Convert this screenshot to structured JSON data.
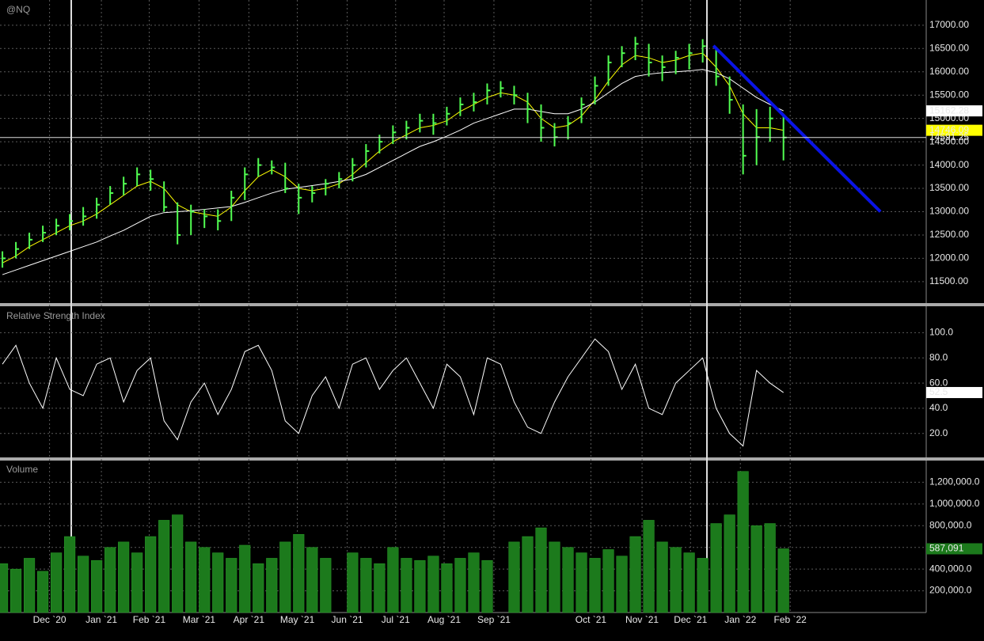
{
  "chart_data": [
    {
      "type": "ohlc",
      "title": "@NQ",
      "color": "#52ff52",
      "high": [
        12150,
        12350,
        12550,
        12700,
        12850,
        12950,
        13100,
        13300,
        13550,
        13750,
        13950,
        13900,
        13650,
        13200,
        13150,
        13050,
        13050,
        13450,
        13950,
        14150,
        14100,
        14050,
        13600,
        13550,
        13700,
        13850,
        14150,
        14450,
        14650,
        14850,
        14950,
        15100,
        15100,
        15250,
        15450,
        15550,
        15750,
        15800,
        15700,
        15550,
        15300,
        14900,
        15050,
        15450,
        15900,
        16350,
        16550,
        16750,
        16600,
        16350,
        16450,
        16600,
        16700,
        16500,
        15900,
        15300,
        15200,
        15250,
        15100
      ],
      "low": [
        11800,
        12000,
        12200,
        12350,
        12500,
        12600,
        12700,
        12850,
        13150,
        13350,
        13550,
        13450,
        13000,
        12300,
        12500,
        12650,
        12600,
        12800,
        13250,
        13750,
        13800,
        13400,
        12950,
        13200,
        13350,
        13500,
        13650,
        13950,
        14250,
        14450,
        14550,
        14700,
        14650,
        14850,
        15050,
        15150,
        15300,
        15450,
        15300,
        14900,
        14500,
        14400,
        14550,
        14900,
        15300,
        15700,
        16100,
        16250,
        15900,
        15800,
        15950,
        16050,
        16200,
        15700,
        15100,
        13800,
        14000,
        14500,
        14100
      ],
      "close": [
        12000,
        12200,
        12400,
        12550,
        12700,
        12800,
        12900,
        13150,
        13400,
        13600,
        13800,
        13700,
        13100,
        12500,
        13000,
        12900,
        12800,
        13300,
        13800,
        14000,
        13950,
        13500,
        13300,
        13400,
        13600,
        13700,
        14000,
        14300,
        14500,
        14700,
        14800,
        14950,
        14900,
        15100,
        15300,
        15350,
        15600,
        15650,
        15500,
        15200,
        14800,
        14600,
        14900,
        15300,
        15700,
        16200,
        16400,
        16600,
        16200,
        16100,
        16300,
        16400,
        16550,
        15900,
        15400,
        14200,
        14600,
        15000,
        14591.25
      ],
      "lines": [
        {
          "color": "#ffff00",
          "values": [
            11900,
            12050,
            12250,
            12400,
            12550,
            12700,
            12800,
            12950,
            13150,
            13350,
            13550,
            13650,
            13500,
            13150,
            13000,
            12950,
            12900,
            13100,
            13450,
            13750,
            13900,
            13750,
            13500,
            13450,
            13500,
            13600,
            13800,
            14050,
            14300,
            14500,
            14650,
            14800,
            14850,
            14950,
            15150,
            15300,
            15450,
            15550,
            15500,
            15350,
            15000,
            14800,
            14850,
            15050,
            15400,
            15800,
            16150,
            16350,
            16300,
            16200,
            16250,
            16350,
            16400,
            16100,
            15700,
            15100,
            14800,
            14800,
            14746.09
          ]
        },
        {
          "color": "#ffffff",
          "values": [
            11650,
            11750,
            11850,
            11950,
            12050,
            12150,
            12250,
            12350,
            12480,
            12600,
            12750,
            12900,
            12980,
            13000,
            13020,
            13050,
            13080,
            13110,
            13200,
            13300,
            13400,
            13480,
            13520,
            13560,
            13600,
            13650,
            13700,
            13800,
            13950,
            14100,
            14250,
            14400,
            14500,
            14620,
            14750,
            14900,
            15000,
            15100,
            15200,
            15200,
            15150,
            15100,
            15100,
            15200,
            15350,
            15550,
            15750,
            15900,
            15950,
            15980,
            16000,
            16020,
            16050,
            15980,
            15850,
            15650,
            15450,
            15300,
            15162.28
          ]
        }
      ],
      "trendline": {
        "color": "#0a14e6",
        "x": [
          52.8,
          65.2
        ],
        "y": [
          16560,
          13000
        ]
      },
      "ylim": [
        11040,
        17540
      ],
      "yticks": [
        {
          "value": 11500,
          "label": "11500.00"
        },
        {
          "value": 12000,
          "label": "12000.00"
        },
        {
          "value": 12500,
          "label": "12500.00"
        },
        {
          "value": 13000,
          "label": "13000.00"
        },
        {
          "value": 13500,
          "label": "13500.00"
        },
        {
          "value": 14000,
          "label": "14000.00"
        },
        {
          "value": 14500,
          "label": "14500.00"
        },
        {
          "value": 15000,
          "label": "15000.00"
        },
        {
          "value": 15500,
          "label": "15500.00"
        },
        {
          "value": 16000,
          "label": "16000.00"
        },
        {
          "value": 16500,
          "label": "16500.00"
        },
        {
          "value": 17000,
          "label": "17000.00"
        }
      ],
      "grid": true
    },
    {
      "type": "line",
      "title": "Relative Strength Index",
      "color": "#ffffff",
      "values": [
        75,
        90,
        60,
        40,
        80,
        55,
        50,
        75,
        80,
        45,
        70,
        80,
        30,
        15,
        45,
        60,
        35,
        55,
        85,
        90,
        70,
        30,
        20,
        50,
        65,
        40,
        75,
        80,
        55,
        70,
        80,
        60,
        40,
        75,
        65,
        35,
        80,
        75,
        45,
        25,
        20,
        45,
        65,
        80,
        95,
        85,
        55,
        75,
        40,
        35,
        60,
        70,
        80,
        40,
        20,
        10,
        70,
        60,
        52.5
      ],
      "ylim": [
        1,
        121
      ],
      "yticks": [
        {
          "value": 20,
          "label": "20.0"
        },
        {
          "value": 40,
          "label": "40.0"
        },
        {
          "value": 60,
          "label": "60.0"
        },
        {
          "value": 80,
          "label": "80.0"
        },
        {
          "value": 100,
          "label": "100.0"
        }
      ],
      "grid": true
    },
    {
      "type": "bar",
      "title": "Volume",
      "color": "#1c7a1c",
      "values": [
        450000,
        400000,
        500000,
        380000,
        550000,
        700000,
        520000,
        480000,
        600000,
        650000,
        550000,
        700000,
        850000,
        900000,
        650000,
        600000,
        550000,
        500000,
        620000,
        450000,
        500000,
        650000,
        720000,
        600000,
        500000,
        null,
        550000,
        500000,
        450000,
        600000,
        500000,
        480000,
        520000,
        450000,
        500000,
        550000,
        480000,
        null,
        650000,
        700000,
        780000,
        650000,
        600000,
        550000,
        500000,
        580000,
        520000,
        700000,
        850000,
        650000,
        600000,
        550000,
        500000,
        820000,
        900000,
        1300000,
        800000,
        820000,
        587091
      ],
      "value_labels": [
        null,
        null,
        null,
        null,
        null,
        null,
        null,
        null,
        null,
        null,
        null,
        null,
        null,
        null,
        null,
        null,
        null,
        null,
        null,
        null,
        null,
        null,
        null,
        null,
        null,
        null,
        null,
        null,
        null,
        null,
        null,
        null,
        null,
        null,
        null,
        null,
        null,
        null,
        null,
        null,
        null,
        null,
        null,
        null,
        null,
        null,
        null,
        null,
        null,
        null,
        null,
        null,
        null,
        null,
        null,
        null,
        null,
        null,
        "587,091"
      ],
      "ylim": [
        0,
        1400000
      ],
      "yticks": [
        {
          "value": 200000,
          "label": "200,000.0"
        },
        {
          "value": 400000,
          "label": "400,000.0"
        },
        {
          "value": 600000,
          "label": "600,000.0"
        },
        {
          "value": 800000,
          "label": "800,000.0"
        },
        {
          "value": 1000000,
          "label": "1,000,000.0"
        },
        {
          "value": 1200000,
          "label": "1,200,000.0"
        }
      ],
      "xlim": [
        -0.18,
        68.6
      ],
      "xticks": [
        {
          "value": 3.5,
          "label": "Dec `20"
        },
        {
          "value": 7.35,
          "label": "Jan `21"
        },
        {
          "value": 10.9,
          "label": "Feb `21"
        },
        {
          "value": 14.6,
          "label": "Mar `21"
        },
        {
          "value": 18.3,
          "label": "Apr `21"
        },
        {
          "value": 21.9,
          "label": "May `21"
        },
        {
          "value": 25.6,
          "label": "Jun `21"
        },
        {
          "value": 29.2,
          "label": "Jul `21"
        },
        {
          "value": 32.8,
          "label": "Aug `21"
        },
        {
          "value": 36.5,
          "label": "Sep `21"
        },
        {
          "value": 43.7,
          "label": "Oct `21"
        },
        {
          "value": 47.5,
          "label": "Nov `21"
        },
        {
          "value": 51.1,
          "label": "Dec `21"
        },
        {
          "value": 54.8,
          "label": "Jan `22"
        },
        {
          "value": 58.5,
          "label": "Feb `22"
        }
      ],
      "grid": true
    }
  ]
}
